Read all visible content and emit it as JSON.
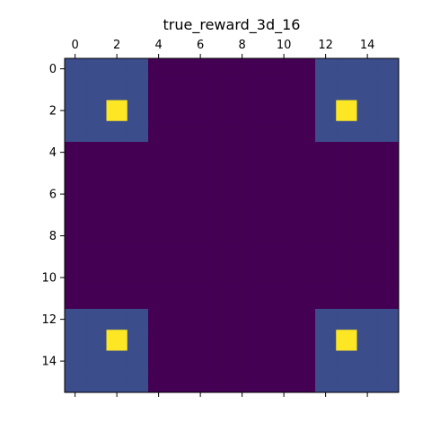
{
  "chart_data": {
    "type": "heatmap",
    "title": "true_reward_3d_16",
    "xlabel": "",
    "ylabel": "",
    "x_axis_position": "top",
    "y_axis_inverted": true,
    "xlim": [
      -0.5,
      15.5
    ],
    "ylim": [
      15.5,
      -0.5
    ],
    "x_ticks": [
      0,
      2,
      4,
      6,
      8,
      10,
      12,
      14
    ],
    "y_ticks": [
      0,
      2,
      4,
      6,
      8,
      10,
      12,
      14
    ],
    "x_tick_labels": [
      "0",
      "2",
      "4",
      "6",
      "8",
      "10",
      "12",
      "14"
    ],
    "y_tick_labels": [
      "0",
      "2",
      "4",
      "6",
      "8",
      "10",
      "12",
      "14"
    ],
    "colormap": "viridis",
    "grid": false,
    "vmin": 0,
    "vmax": 1,
    "values": [
      [
        0.2,
        0.2,
        0.2,
        0.2,
        0,
        0,
        0,
        0,
        0,
        0,
        0,
        0,
        0.2,
        0.2,
        0.2,
        0.2
      ],
      [
        0.2,
        0.2,
        0.2,
        0.2,
        0,
        0,
        0,
        0,
        0,
        0,
        0,
        0,
        0.2,
        0.2,
        0.2,
        0.2
      ],
      [
        0.2,
        0.2,
        1,
        0.2,
        0,
        0,
        0,
        0,
        0,
        0,
        0,
        0,
        0.2,
        1,
        0.2,
        0.2
      ],
      [
        0.2,
        0.2,
        0.2,
        0.2,
        0,
        0,
        0,
        0,
        0,
        0,
        0,
        0,
        0.2,
        0.2,
        0.2,
        0.2
      ],
      [
        0,
        0,
        0,
        0,
        0,
        0,
        0,
        0,
        0,
        0,
        0,
        0,
        0,
        0,
        0,
        0
      ],
      [
        0,
        0,
        0,
        0,
        0,
        0,
        0,
        0,
        0,
        0,
        0,
        0,
        0,
        0,
        0,
        0
      ],
      [
        0,
        0,
        0,
        0,
        0,
        0,
        0,
        0,
        0,
        0,
        0,
        0,
        0,
        0,
        0,
        0
      ],
      [
        0,
        0,
        0,
        0,
        0,
        0,
        0,
        0,
        0,
        0,
        0,
        0,
        0,
        0,
        0,
        0
      ],
      [
        0,
        0,
        0,
        0,
        0,
        0,
        0,
        0,
        0,
        0,
        0,
        0,
        0,
        0,
        0,
        0
      ],
      [
        0,
        0,
        0,
        0,
        0,
        0,
        0,
        0,
        0,
        0,
        0,
        0,
        0,
        0,
        0,
        0
      ],
      [
        0,
        0,
        0,
        0,
        0,
        0,
        0,
        0,
        0,
        0,
        0,
        0,
        0,
        0,
        0,
        0
      ],
      [
        0,
        0,
        0,
        0,
        0,
        0,
        0,
        0,
        0,
        0,
        0,
        0,
        0,
        0,
        0,
        0
      ],
      [
        0.2,
        0.2,
        0.2,
        0.2,
        0,
        0,
        0,
        0,
        0,
        0,
        0,
        0,
        0.2,
        0.2,
        0.2,
        0.2
      ],
      [
        0.2,
        0.2,
        1,
        0.2,
        0,
        0,
        0,
        0,
        0,
        0,
        0,
        0,
        0.2,
        1,
        0.2,
        0.2
      ],
      [
        0.2,
        0.2,
        0.2,
        0.2,
        0,
        0,
        0,
        0,
        0,
        0,
        0,
        0,
        0.2,
        0.2,
        0.2,
        0.2
      ],
      [
        0.2,
        0.2,
        0.2,
        0.2,
        0,
        0,
        0,
        0,
        0,
        0,
        0,
        0,
        0.2,
        0.2,
        0.2,
        0.2
      ]
    ],
    "color_scale": [
      {
        "value": 0,
        "color": "#440154"
      },
      {
        "value": 0.2,
        "color": "#3b4d8a"
      },
      {
        "value": 1,
        "color": "#fde725"
      }
    ]
  }
}
